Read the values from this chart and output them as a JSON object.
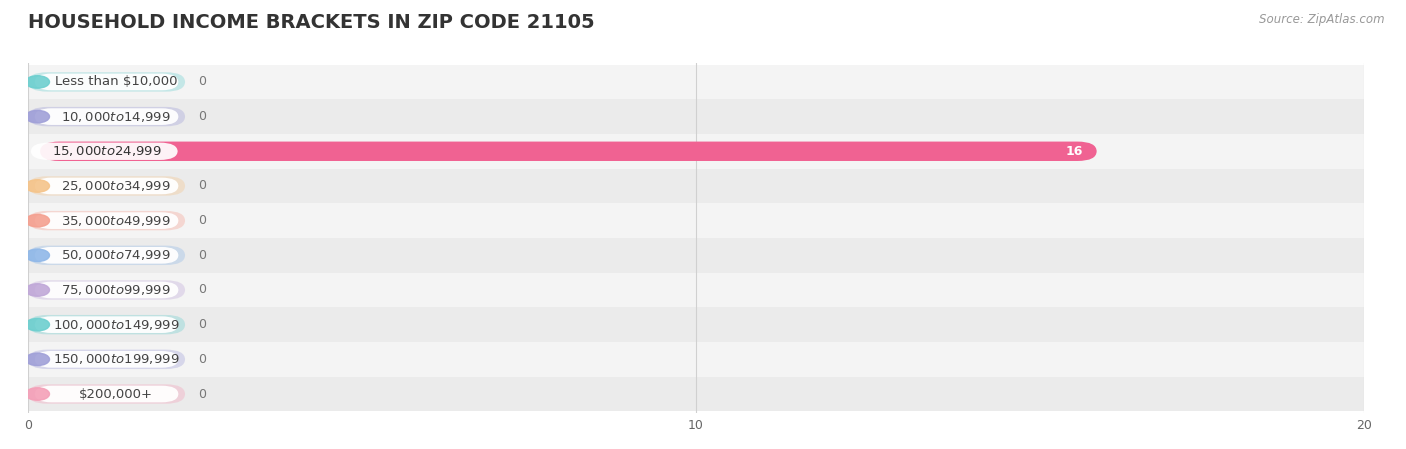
{
  "title": "HOUSEHOLD INCOME BRACKETS IN ZIP CODE 21105",
  "source_text": "Source: ZipAtlas.com",
  "categories": [
    "Less than $10,000",
    "$10,000 to $14,999",
    "$15,000 to $24,999",
    "$25,000 to $34,999",
    "$35,000 to $49,999",
    "$50,000 to $74,999",
    "$75,000 to $99,999",
    "$100,000 to $149,999",
    "$150,000 to $199,999",
    "$200,000+"
  ],
  "values": [
    0,
    0,
    16,
    0,
    0,
    0,
    0,
    0,
    0,
    0
  ],
  "bar_colors": [
    "#6dcfcf",
    "#a0a0d8",
    "#f06292",
    "#f5c48a",
    "#f4a090",
    "#90b8e8",
    "#c0a8d8",
    "#6dcfcf",
    "#a0a0d8",
    "#f4a0b8"
  ],
  "background_color": "#ffffff",
  "row_bg_even": "#f0f0f0",
  "row_bg_odd": "#e8e8e8",
  "xlim": [
    0,
    20
  ],
  "xticks": [
    0,
    10,
    20
  ],
  "title_fontsize": 14,
  "label_fontsize": 9.5,
  "tick_fontsize": 9
}
